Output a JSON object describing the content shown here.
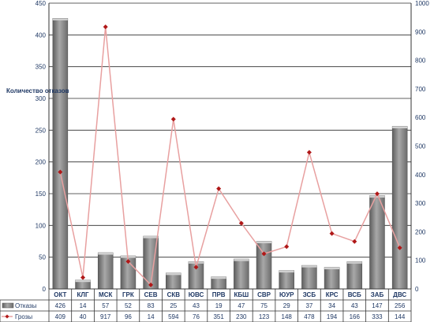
{
  "chart_data": {
    "type": "bar",
    "ylabel": "Количество отказов",
    "categories": [
      "ОКТ",
      "КЛГ",
      "МСК",
      "ГРК",
      "СЕВ",
      "СКВ",
      "ЮВС",
      "ПРВ",
      "КБШ",
      "СВР",
      "ЮУР",
      "ЗСБ",
      "КРС",
      "ВСБ",
      "ЗАБ",
      "ДВС"
    ],
    "ylim": [
      0,
      450
    ],
    "y2lim": [
      0,
      1000
    ],
    "yticks": [
      0,
      50,
      100,
      150,
      200,
      250,
      300,
      350,
      400,
      450
    ],
    "y2ticks": [
      0,
      100,
      200,
      300,
      400,
      500,
      600,
      700,
      800,
      900,
      1000
    ],
    "series": [
      {
        "name": "Отказы",
        "type": "bar",
        "axis": "left",
        "color": "#8c8c8c",
        "values": [
          426,
          14,
          57,
          52,
          83,
          25,
          43,
          19,
          47,
          75,
          29,
          37,
          34,
          43,
          147,
          256
        ]
      },
      {
        "name": "Грозы",
        "type": "line",
        "axis": "right",
        "color": "#e8a0a0",
        "marker_color": "#b01818",
        "values": [
          409,
          40,
          917,
          96,
          14,
          594,
          76,
          351,
          230,
          123,
          148,
          478,
          194,
          166,
          333,
          144
        ]
      }
    ],
    "grid": true,
    "legend": "data-table"
  }
}
